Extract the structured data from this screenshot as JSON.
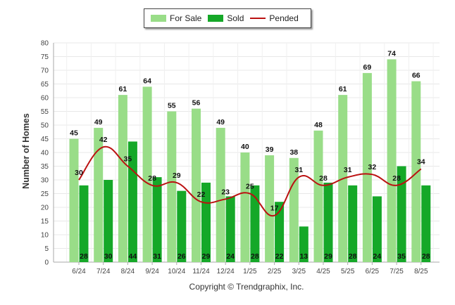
{
  "chart_data": {
    "type": "bar",
    "ylabel": "Number of Homes",
    "xlabel": "",
    "ylim": [
      0,
      80
    ],
    "yticks": [
      0,
      5,
      10,
      15,
      20,
      25,
      30,
      35,
      40,
      45,
      50,
      55,
      60,
      65,
      70,
      75,
      80
    ],
    "categories": [
      "6/24",
      "7/24",
      "8/24",
      "9/24",
      "10/24",
      "11/24",
      "12/24",
      "1/25",
      "2/25",
      "3/25",
      "4/25",
      "5/25",
      "6/25",
      "7/25",
      "8/25"
    ],
    "series": [
      {
        "name": "For Sale",
        "type": "bar",
        "color": "#99dd88",
        "values": [
          45,
          49,
          61,
          64,
          55,
          56,
          49,
          40,
          39,
          38,
          48,
          61,
          69,
          74,
          66
        ]
      },
      {
        "name": "Sold",
        "type": "bar",
        "color": "#15a828",
        "values": [
          28,
          30,
          44,
          31,
          26,
          29,
          24,
          28,
          22,
          13,
          29,
          28,
          24,
          35,
          28
        ]
      },
      {
        "name": "Pended",
        "type": "line",
        "color": "#bb1111",
        "values": [
          30,
          42,
          35,
          28,
          29,
          22,
          23,
          25,
          17,
          31,
          28,
          31,
          32,
          28,
          34
        ]
      }
    ],
    "legend": "top-center",
    "grid": true
  },
  "footer": {
    "copyright": "Copyright © Trendgraphix, Inc."
  }
}
